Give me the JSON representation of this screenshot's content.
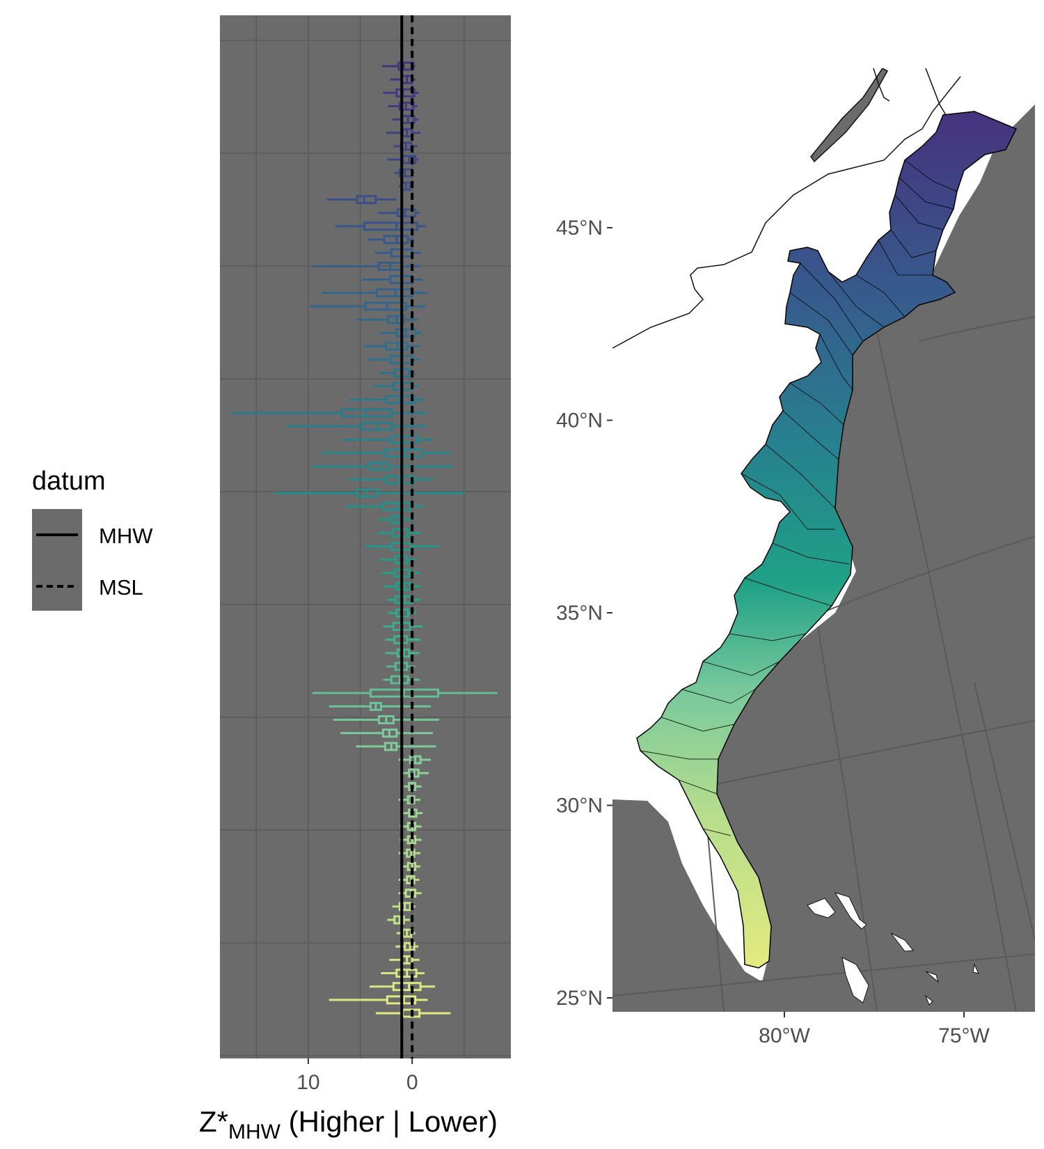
{
  "chart_data": [
    {
      "type": "boxplot",
      "panel": "left",
      "xlabel_main": "Z*",
      "xlabel_sub": "MHW",
      "xlabel_rest": " (Higher | Lower)",
      "x_reversed": true,
      "xlim": [
        -9.5,
        18.5
      ],
      "x_ticks": [
        10,
        0
      ],
      "x_tick_labels": [
        "10",
        "0"
      ],
      "reference_lines": [
        {
          "datum": "MHW",
          "x": 1.0,
          "style": "solid"
        },
        {
          "datum": "MSL",
          "x": 0.0,
          "style": "dashed"
        }
      ],
      "grid": true,
      "legend": {
        "title": "datum",
        "placement": "left",
        "entries": [
          {
            "label": "MHW",
            "style": "solid"
          },
          {
            "label": "MSL",
            "style": "dashed"
          }
        ]
      },
      "color_scale": "viridis (north = purple, south = yellow)",
      "series": [
        {
          "box": [
            -0.1,
            1.3
          ],
          "whisker": [
            -0.3,
            2.9
          ],
          "median": 0.8
        },
        {
          "box": [
            0.0,
            1.0
          ],
          "whisker": [
            -0.3,
            2.1
          ],
          "median": 0.5
        },
        {
          "box": [
            -0.2,
            1.5
          ],
          "whisker": [
            -0.6,
            2.8
          ],
          "median": 0.9
        },
        {
          "box": [
            -0.1,
            1.2
          ],
          "whisker": [
            -0.5,
            2.3
          ],
          "median": 0.6
        },
        {
          "box": [
            -0.2,
            1.0
          ],
          "whisker": [
            -0.6,
            1.9
          ],
          "median": 0.4
        },
        {
          "box": [
            0.0,
            0.9
          ],
          "whisker": [
            -0.8,
            2.5
          ],
          "median": 0.5
        },
        {
          "box": [
            0.1,
            1.1
          ],
          "whisker": [
            -0.5,
            1.8
          ],
          "median": 0.6
        },
        {
          "box": [
            -0.3,
            0.9
          ],
          "whisker": [
            -0.6,
            2.4
          ],
          "median": 0.3
        },
        {
          "box": [
            0.0,
            1.2
          ],
          "whisker": [
            -0.2,
            1.7
          ],
          "median": 0.7
        },
        {
          "box": [
            0.2,
            1.0
          ],
          "whisker": [
            0.0,
            1.3
          ],
          "median": 0.6
        },
        {
          "box": [
            3.5,
            5.3
          ],
          "whisker": [
            1.5,
            8.2
          ],
          "median": 4.6
        },
        {
          "box": [
            -0.3,
            1.4
          ],
          "whisker": [
            -0.7,
            3.3
          ],
          "median": 0.7
        },
        {
          "box": [
            -0.5,
            4.6
          ],
          "whisker": [
            -1.3,
            7.4
          ],
          "median": 1.5
        },
        {
          "box": [
            0.4,
            2.7
          ],
          "whisker": [
            -0.2,
            4.3
          ],
          "median": 1.5
        },
        {
          "box": [
            0.0,
            2.0
          ],
          "whisker": [
            -0.8,
            3.6
          ],
          "median": 1.0
        },
        {
          "box": [
            1.0,
            3.2
          ],
          "whisker": [
            -0.8,
            9.6
          ],
          "median": 2.1
        },
        {
          "box": [
            0.0,
            2.1
          ],
          "whisker": [
            -1.0,
            4.8
          ],
          "median": 1.0
        },
        {
          "box": [
            0.0,
            3.4
          ],
          "whisker": [
            -1.5,
            8.7
          ],
          "median": 1.6
        },
        {
          "box": [
            0.6,
            4.5
          ],
          "whisker": [
            -1.3,
            9.8
          ],
          "median": 2.4
        },
        {
          "box": [
            0.8,
            2.3
          ],
          "whisker": [
            -0.6,
            5.4
          ],
          "median": 1.5
        },
        {
          "box": [
            -0.3,
            1.5
          ],
          "whisker": [
            -0.9,
            3.1
          ],
          "median": 0.6
        },
        {
          "box": [
            0.5,
            2.5
          ],
          "whisker": [
            -0.7,
            4.7
          ],
          "median": 1.4
        },
        {
          "box": [
            0.0,
            2.1
          ],
          "whisker": [
            -0.8,
            4.2
          ],
          "median": 1.0
        },
        {
          "box": [
            0.3,
            1.7
          ],
          "whisker": [
            -0.3,
            3.1
          ],
          "median": 1.0
        },
        {
          "box": [
            0.0,
            1.8
          ],
          "whisker": [
            -0.6,
            3.8
          ],
          "median": 0.9
        },
        {
          "box": [
            -0.3,
            2.5
          ],
          "whisker": [
            -1.2,
            6.1
          ],
          "median": 1.2
        },
        {
          "box": [
            2.0,
            6.8
          ],
          "whisker": [
            -1.4,
            17.3
          ],
          "median": 4.5
        },
        {
          "box": [
            2.0,
            4.8
          ],
          "whisker": [
            -1.4,
            12.1
          ],
          "median": 3.3
        },
        {
          "box": [
            -0.5,
            2.0
          ],
          "whisker": [
            -2.0,
            6.8
          ],
          "median": 0.8
        },
        {
          "box": [
            -1.0,
            2.6
          ],
          "whisker": [
            -3.7,
            8.8
          ],
          "median": 0.8
        },
        {
          "box": [
            2.3,
            4.1
          ],
          "whisker": [
            -3.9,
            9.6
          ],
          "median": 3.1
        },
        {
          "box": [
            -0.2,
            2.5
          ],
          "whisker": [
            -2.0,
            6.1
          ],
          "median": 1.2
        },
        {
          "box": [
            3.3,
            5.3
          ],
          "whisker": [
            -5.1,
            13.3
          ],
          "median": 4.4
        },
        {
          "box": [
            0.2,
            2.8
          ],
          "whisker": [
            -1.1,
            6.4
          ],
          "median": 1.5
        },
        {
          "box": [
            1.0,
            2.0
          ],
          "whisker": [
            0.0,
            3.2
          ],
          "median": 1.5
        },
        {
          "box": [
            0.4,
            1.9
          ],
          "whisker": [
            -0.8,
            3.3
          ],
          "median": 1.1
        },
        {
          "box": [
            0.1,
            2.0
          ],
          "whisker": [
            -2.5,
            4.6
          ],
          "median": 1.0
        },
        {
          "box": [
            0.5,
            1.6
          ],
          "whisker": [
            -0.4,
            3.1
          ],
          "median": 1.0
        },
        {
          "box": [
            0.3,
            1.7
          ],
          "whisker": [
            -0.7,
            2.9
          ],
          "median": 1.0
        },
        {
          "box": [
            0.2,
            1.5
          ],
          "whisker": [
            -0.8,
            2.8
          ],
          "median": 0.8
        },
        {
          "box": [
            0.0,
            1.6
          ],
          "whisker": [
            -0.8,
            2.4
          ],
          "median": 0.7
        },
        {
          "box": [
            0.4,
            1.5
          ],
          "whisker": [
            -0.4,
            2.3
          ],
          "median": 0.9
        },
        {
          "box": [
            0.2,
            1.8
          ],
          "whisker": [
            -1.0,
            2.8
          ],
          "median": 1.1
        },
        {
          "box": [
            0.5,
            1.7
          ],
          "whisker": [
            -0.8,
            2.6
          ],
          "median": 1.0
        },
        {
          "box": [
            0.3,
            1.4
          ],
          "whisker": [
            -0.7,
            2.6
          ],
          "median": 0.8
        },
        {
          "box": [
            0.5,
            1.6
          ],
          "whisker": [
            -0.3,
            2.5
          ],
          "median": 1.0
        },
        {
          "box": [
            0.4,
            2.0
          ],
          "whisker": [
            -0.7,
            2.8
          ],
          "median": 1.2
        },
        {
          "box": [
            -2.5,
            4.0
          ],
          "whisker": [
            -8.2,
            9.6
          ],
          "median": 0.8
        },
        {
          "box": [
            3.0,
            4.0
          ],
          "whisker": [
            -1.8,
            8.0
          ],
          "median": 3.5
        },
        {
          "box": [
            1.8,
            3.2
          ],
          "whisker": [
            -2.6,
            7.6
          ],
          "median": 2.5
        },
        {
          "box": [
            1.5,
            2.8
          ],
          "whisker": [
            -2.0,
            6.9
          ],
          "median": 2.2
        },
        {
          "box": [
            1.5,
            2.6
          ],
          "whisker": [
            -2.3,
            5.4
          ],
          "median": 2.0
        },
        {
          "box": [
            -0.8,
            0.2
          ],
          "whisker": [
            -1.8,
            1.3
          ],
          "median": -0.3
        },
        {
          "box": [
            -0.6,
            0.3
          ],
          "whisker": [
            -1.6,
            1.1
          ],
          "median": -0.2
        },
        {
          "box": [
            -0.3,
            0.3
          ],
          "whisker": [
            -0.9,
            0.8
          ],
          "median": 0.0
        },
        {
          "box": [
            -0.2,
            0.4
          ],
          "whisker": [
            -0.8,
            1.3
          ],
          "median": 0.1
        },
        {
          "box": [
            -0.4,
            0.3
          ],
          "whisker": [
            -1.0,
            1.1
          ],
          "median": 0.0
        },
        {
          "box": [
            -0.3,
            0.4
          ],
          "whisker": [
            -0.9,
            1.2
          ],
          "median": 0.0
        },
        {
          "box": [
            -0.3,
            0.4
          ],
          "whisker": [
            -0.9,
            1.2
          ],
          "median": 0.0
        },
        {
          "box": [
            -0.2,
            0.5
          ],
          "whisker": [
            -0.8,
            1.3
          ],
          "median": 0.1
        },
        {
          "box": [
            -0.3,
            0.4
          ],
          "whisker": [
            -0.8,
            1.1
          ],
          "median": 0.0
        },
        {
          "box": [
            -0.2,
            0.5
          ],
          "whisker": [
            -0.7,
            1.3
          ],
          "median": 0.1
        },
        {
          "box": [
            -0.3,
            0.6
          ],
          "whisker": [
            -0.9,
            1.3
          ],
          "median": 0.1
        },
        {
          "box": [
            0.2,
            1.2
          ],
          "whisker": [
            -0.3,
            1.9
          ],
          "median": 0.7
        },
        {
          "box": [
            0.8,
            1.7
          ],
          "whisker": [
            0.2,
            2.4
          ],
          "median": 1.2
        },
        {
          "box": [
            0.1,
            0.9
          ],
          "whisker": [
            -0.3,
            1.5
          ],
          "median": 0.5
        },
        {
          "box": [
            -0.2,
            0.7
          ],
          "whisker": [
            -0.6,
            1.6
          ],
          "median": 0.2
        },
        {
          "box": [
            0.0,
            1.0
          ],
          "whisker": [
            -0.7,
            2.2
          ],
          "median": 0.5
        },
        {
          "box": [
            -0.4,
            1.5
          ],
          "whisker": [
            -1.2,
            3.0
          ],
          "median": 0.5
        },
        {
          "box": [
            -0.8,
            1.8
          ],
          "whisker": [
            -2.2,
            4.1
          ],
          "median": 0.3
        },
        {
          "box": [
            -0.3,
            2.4
          ],
          "whisker": [
            -1.5,
            8.0
          ],
          "median": 0.8
        },
        {
          "box": [
            -0.7,
            0.9
          ],
          "whisker": [
            -3.7,
            3.5
          ],
          "median": 0.0
        }
      ]
    },
    {
      "type": "map",
      "panel": "right",
      "y_ticks": [
        45,
        40,
        35,
        30,
        25
      ],
      "y_tick_labels": [
        "45°N",
        "40°N",
        "35°N",
        "30°N",
        "25°N"
      ],
      "x_ticks": [
        -80,
        -75
      ],
      "x_tick_labels": [
        "80°W",
        "75°W"
      ],
      "fill": "watersheds colored by latitude (viridis)",
      "grid": true
    }
  ],
  "colors": {
    "panel_bg": "#6b6b6b",
    "grid": "#595959",
    "land": "#ffffff",
    "mhw_line": "#000000",
    "msl_line": "#000000"
  }
}
